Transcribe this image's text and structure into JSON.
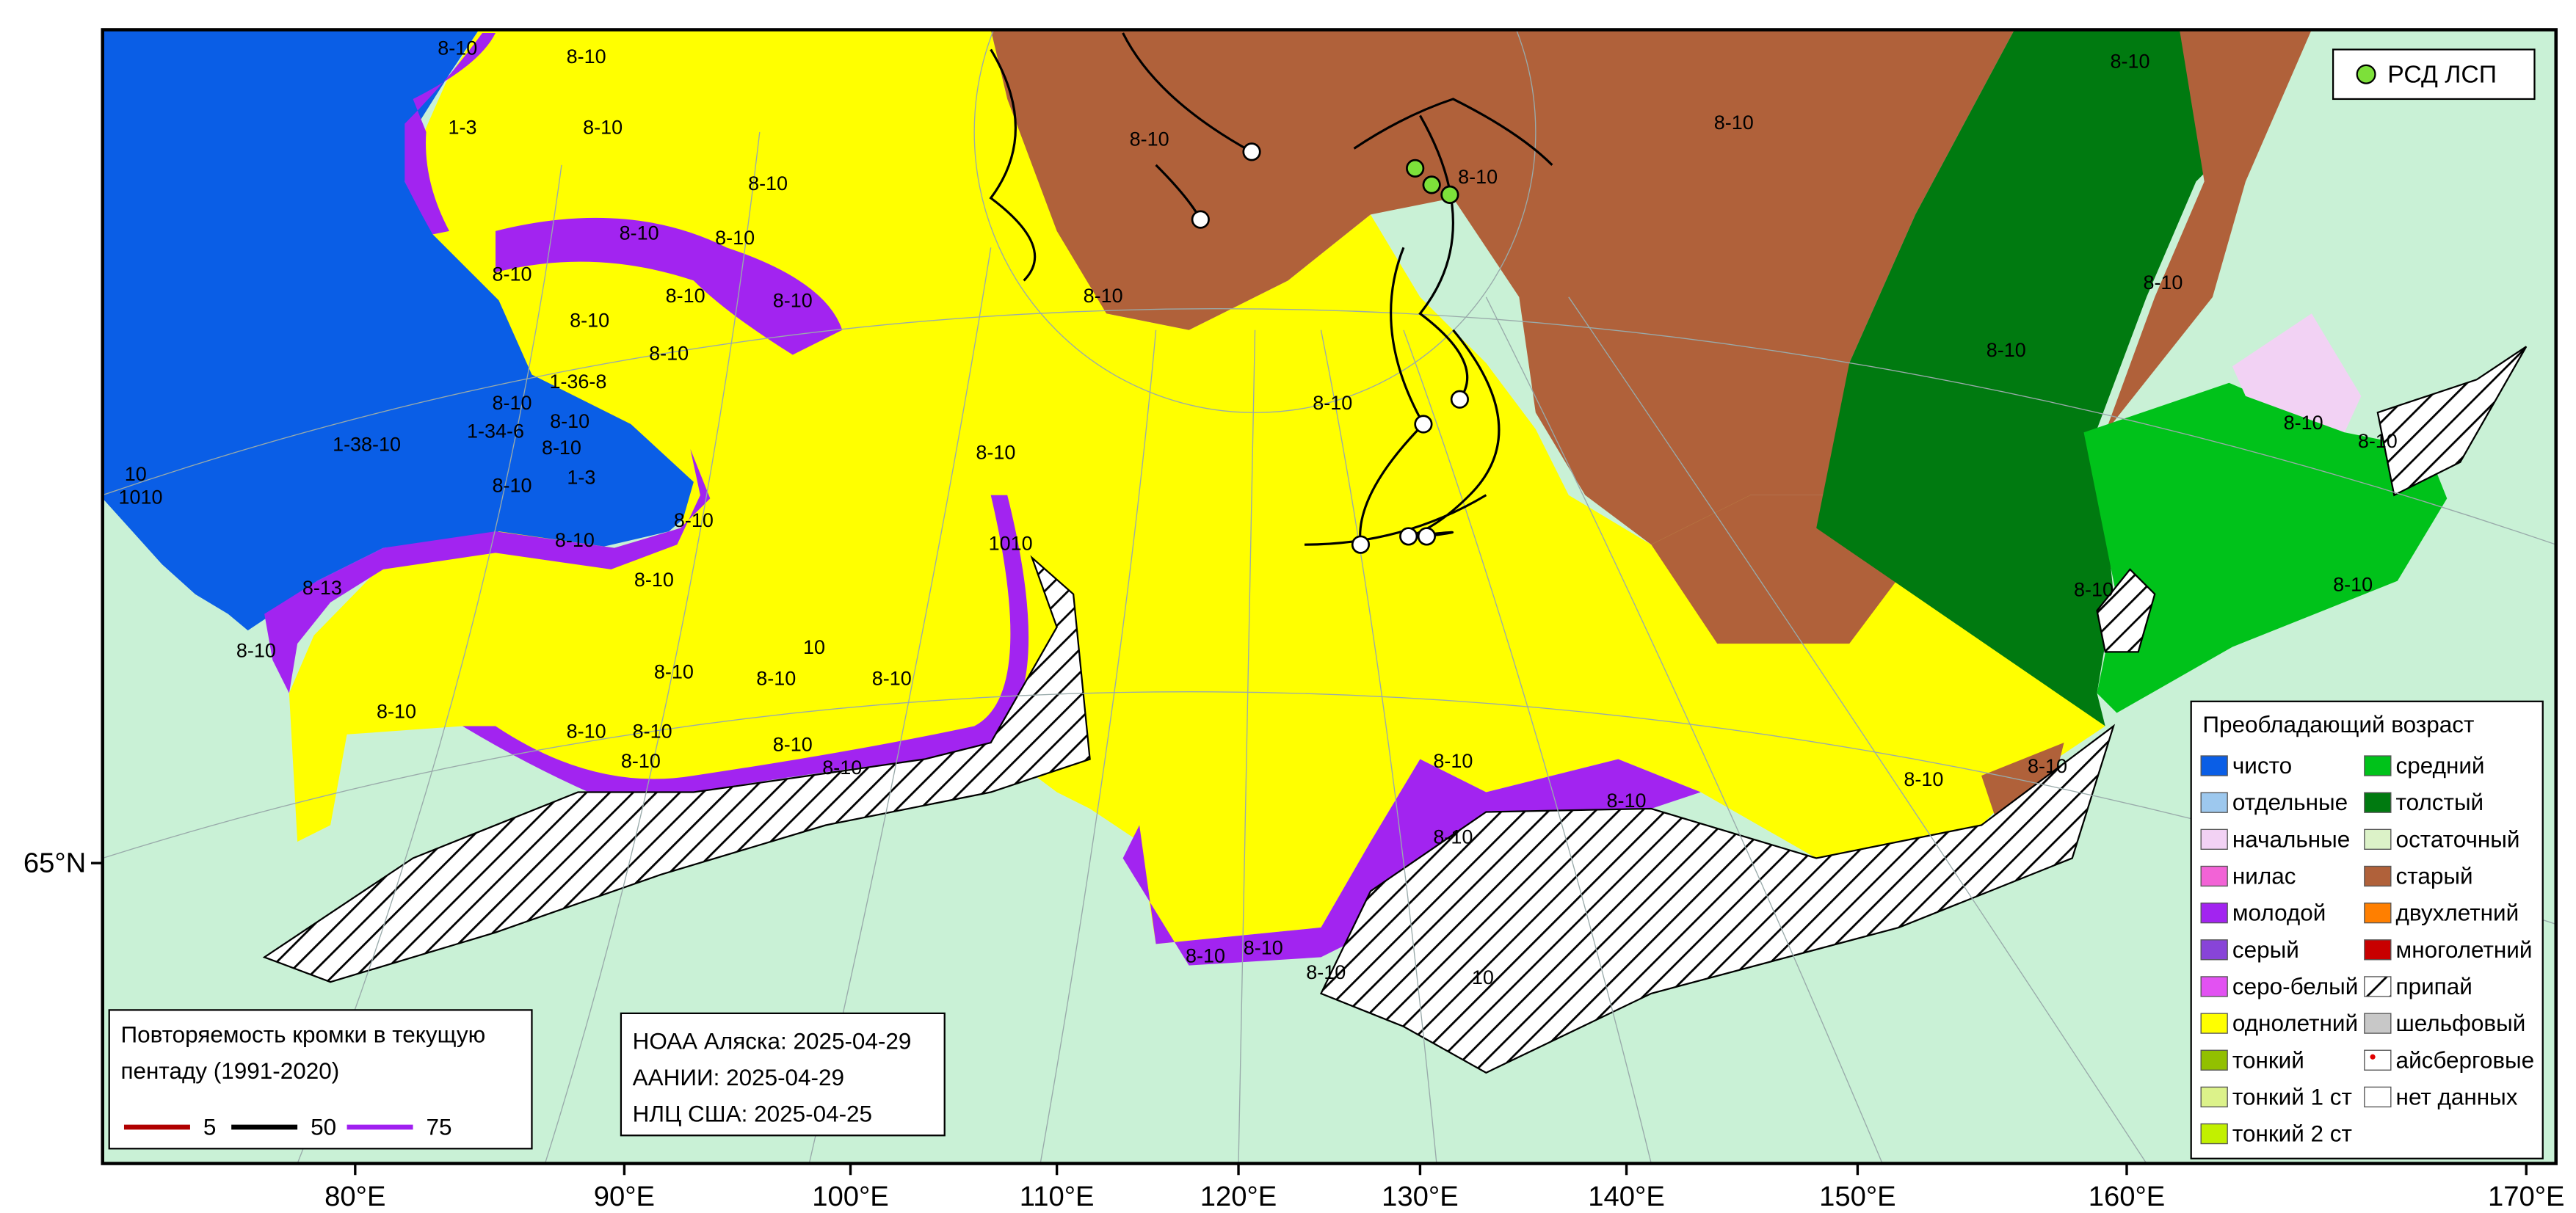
{
  "map": {
    "lon_labels": [
      "80°E",
      "90°E",
      "100°E",
      "110°E",
      "120°E",
      "130°E",
      "140°E",
      "150°E",
      "160°E",
      "170°E"
    ],
    "lat_labels": [
      "65°N"
    ],
    "ice_labels": [
      "8-10",
      "8-10",
      "1-3",
      "8-10",
      "8-10",
      "8-10",
      "8-10",
      "8-10",
      "8-10",
      "8-10",
      "8-10",
      "8-10",
      "1-36-8",
      "8-10",
      "8-10",
      "1-34-6",
      "1-38-10",
      "8-10",
      "1-3",
      "8-10",
      "8-10",
      "8-10",
      "8-10",
      "8-13",
      "8-10",
      "8-10",
      "8-10",
      "8-10",
      "8-10",
      "8-10",
      "8-10",
      "8-10",
      "8-10",
      "8-10",
      "8-10",
      "8-10",
      "8-10",
      "8-10",
      "8-10",
      "8-10",
      "8-10",
      "8-10",
      "8-10",
      "8-10",
      "8-10",
      "8-10",
      "8-10",
      "8-10",
      "8-10",
      "8-10",
      "8-10",
      "8-10",
      "8-10",
      "10",
      "8-10",
      "8-10",
      "10",
      "1010",
      "10",
      "1010"
    ]
  },
  "stations_legend": "РСД ЛСП",
  "legend": {
    "title": "Преобладающий возраст",
    "items": [
      {
        "label": "чисто",
        "color": "#0a5ee6"
      },
      {
        "label": "отдельные",
        "color": "#9dc8ee"
      },
      {
        "label": "начальные",
        "color": "#f2d2f4"
      },
      {
        "label": "нилас",
        "color": "#f263d6"
      },
      {
        "label": "молодой",
        "color": "#a224f0"
      },
      {
        "label": "серый",
        "color": "#8844d8"
      },
      {
        "label": "серо-белый",
        "color": "#e252f2"
      },
      {
        "label": "однолетний",
        "color": "#ffff00"
      },
      {
        "label": "тонкий",
        "color": "#92c000"
      },
      {
        "label": "тонкий 1 ст",
        "color": "#dcf28a"
      },
      {
        "label": "тонкий 2 ст",
        "color": "#c2f000"
      },
      {
        "label": "средний",
        "color": "#00c21a"
      },
      {
        "label": "толстый",
        "color": "#007a10"
      },
      {
        "label": "остаточный",
        "color": "#dcf2c8"
      },
      {
        "label": "старый",
        "color": "#b0613a"
      },
      {
        "label": "двухлетний",
        "color": "#ff7f00"
      },
      {
        "label": "многолетний",
        "color": "#c80000"
      },
      {
        "label": "припай",
        "color": "#ffffff",
        "pattern": "hatch"
      },
      {
        "label": "шельфовый",
        "color": "#c8c8c8"
      },
      {
        "label": "айсберговые",
        "color": "#e00000",
        "symbol": "dot"
      },
      {
        "label": "нет данных",
        "color": "#ffffff"
      }
    ]
  },
  "edge_legend": {
    "title_lines": [
      "Повторяемость кромки в текущую",
      "пентаду (1991-2020)"
    ],
    "items": [
      {
        "label": "5",
        "color": "#b00000"
      },
      {
        "label": "50",
        "color": "#000000"
      },
      {
        "label": "75",
        "color": "#a020f0"
      }
    ]
  },
  "sources": [
    "НОАА Аляска: 2025-04-29",
    "ААНИИ: 2025-04-29",
    "НЛЦ США: 2025-04-25"
  ]
}
